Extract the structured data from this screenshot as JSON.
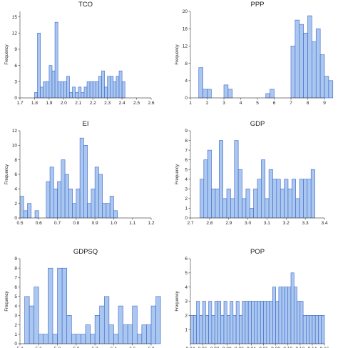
{
  "chart_data": [
    {
      "type": "bar",
      "title": "TCO",
      "ylabel": "Frequency",
      "xlim": [
        1.7,
        2.6
      ],
      "ylim": [
        0,
        16
      ],
      "xticks": [
        "1.7",
        "1.8",
        "1.9",
        "2.0",
        "2.1",
        "2.2",
        "2.3",
        "2.4",
        "2.5",
        "2.6"
      ],
      "yticks": [
        "0",
        "3",
        "6",
        "9",
        "12",
        "15"
      ],
      "bin_start": 1.8,
      "bin_width": 0.02,
      "values": [
        1,
        12,
        2,
        3,
        3,
        6,
        5,
        14,
        3,
        3,
        3,
        4,
        1,
        2,
        1,
        2,
        1,
        2,
        3,
        3,
        3,
        3,
        4,
        5,
        2,
        4,
        4,
        3,
        4,
        5,
        3
      ]
    },
    {
      "type": "bar",
      "title": "PPP",
      "ylabel": "Frequency",
      "xlim": [
        1,
        9
      ],
      "ylim": [
        0,
        20
      ],
      "xticks": [
        "1",
        "2",
        "3",
        "4",
        "5",
        "6",
        "7",
        "8",
        "9"
      ],
      "yticks": [
        "0",
        "4",
        "8",
        "12",
        "16",
        "20"
      ],
      "bin_start": 1.5,
      "bin_width": 0.25,
      "values": [
        7,
        2,
        2,
        0,
        0,
        0,
        3,
        2,
        0,
        0,
        0,
        0,
        0,
        0,
        0,
        0,
        1,
        2,
        0,
        0,
        0,
        0,
        12,
        18,
        17,
        15,
        19,
        13,
        16,
        10,
        5,
        4
      ]
    },
    {
      "type": "bar",
      "title": "EI",
      "ylabel": "Frequency",
      "xlim": [
        0.5,
        1.2
      ],
      "ylim": [
        0,
        12
      ],
      "xticks": [
        "0.5",
        "0.6",
        "0.7",
        "0.8",
        "0.9",
        "1.0",
        "1.1",
        "1.2"
      ],
      "yticks": [
        "0",
        "2",
        "4",
        "6",
        "8",
        "10",
        "12"
      ],
      "bin_start": 0.5,
      "bin_width": 0.02,
      "values": [
        3,
        1,
        2,
        0,
        1,
        0,
        0,
        5,
        7,
        4,
        5,
        8,
        6,
        4,
        2,
        4,
        11,
        10,
        2,
        4,
        7,
        6,
        2,
        2,
        3,
        1
      ]
    },
    {
      "type": "bar",
      "title": "GDP",
      "ylabel": "Frequency",
      "xlim": [
        2.7,
        3.4
      ],
      "ylim": [
        0,
        9
      ],
      "xticks": [
        "2.7",
        "2.8",
        "2.9",
        "3.0",
        "3.1",
        "3.2",
        "3.3",
        "3.4"
      ],
      "yticks": [
        "0",
        "1",
        "2",
        "3",
        "4",
        "5",
        "6",
        "7",
        "8",
        "9"
      ],
      "bin_start": 2.75,
      "bin_width": 0.02,
      "values": [
        4,
        6,
        7,
        3,
        3,
        8,
        2,
        3,
        2,
        8,
        5,
        2,
        3,
        1,
        3,
        4,
        6,
        2,
        5,
        4,
        4,
        3,
        4,
        3,
        4,
        2,
        4,
        4,
        4,
        5
      ]
    },
    {
      "type": "bar",
      "title": "GDPSQ",
      "ylabel": "Frequency",
      "xlim": [
        5.4,
        6.8
      ],
      "ylim": [
        0,
        9
      ],
      "xticks": [
        "5.4",
        "5.6",
        "5.8",
        "6.0",
        "6.2",
        "6.4",
        "6.6",
        "6.8"
      ],
      "yticks": [
        "0",
        "1",
        "2",
        "3",
        "4",
        "5",
        "6",
        "7",
        "8",
        "9"
      ],
      "bin_start": 5.45,
      "bin_width": 0.05,
      "values": [
        5,
        4,
        6,
        1,
        1,
        8,
        1,
        8,
        8,
        3,
        1,
        1,
        1,
        2,
        1,
        3,
        4,
        5,
        2,
        1,
        4,
        2,
        2,
        4,
        1,
        2,
        2,
        4,
        5
      ]
    },
    {
      "type": "bar",
      "title": "POP",
      "ylabel": "Frequency",
      "xlim": [
        8.94,
        9.16
      ],
      "ylim": [
        0,
        6
      ],
      "xticks": [
        "8.94",
        "8.96",
        "8.98",
        "9.00",
        "9.02",
        "9.04",
        "9.06",
        "9.08",
        "9.10",
        "9.12",
        "9.14",
        "9.16"
      ],
      "yticks": [
        "1",
        "2",
        "3",
        "4",
        "5",
        "6"
      ],
      "bin_start": 8.94,
      "bin_width": 0.005,
      "values": [
        2,
        2,
        3,
        2,
        3,
        2,
        3,
        2,
        3,
        3,
        2,
        3,
        2,
        3,
        2,
        3,
        2,
        3,
        3,
        3,
        3,
        3,
        3,
        3,
        3,
        3,
        3,
        4,
        3,
        4,
        4,
        4,
        4,
        5,
        4,
        3,
        3,
        2,
        2,
        2,
        2,
        2,
        2,
        2
      ]
    }
  ]
}
